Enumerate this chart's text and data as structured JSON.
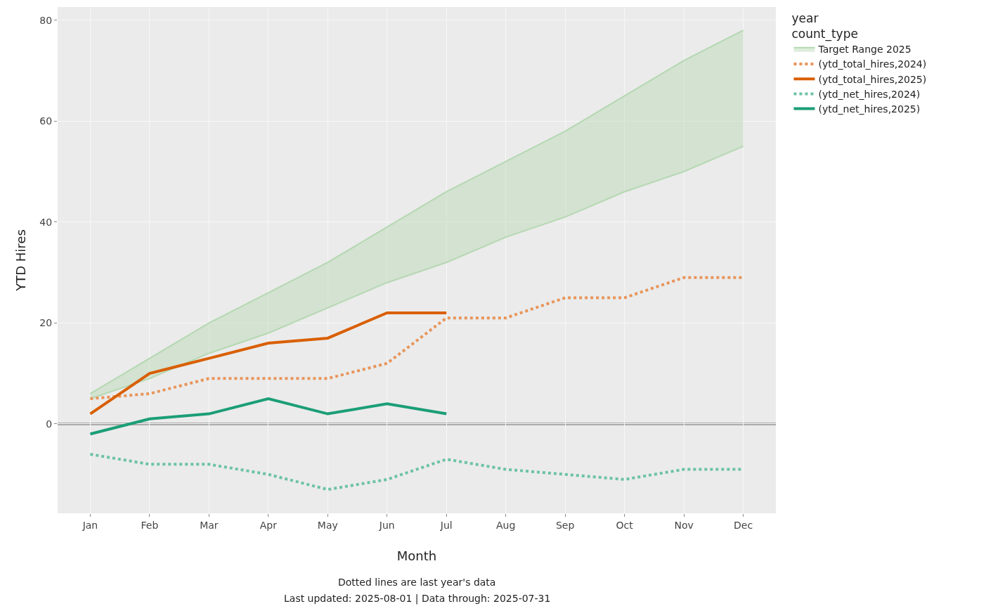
{
  "chart_data": {
    "type": "line",
    "xlabel": "Month",
    "ylabel": "YTD Hires",
    "legend_title": "year\ncount_type",
    "categories": [
      "Jan",
      "Feb",
      "Mar",
      "Apr",
      "May",
      "Jun",
      "Jul",
      "Aug",
      "Sep",
      "Oct",
      "Nov",
      "Dec"
    ],
    "series": [
      {
        "type": "line",
        "color": "#b5d8b2",
        "line_style": "solid",
        "values": [
          5,
          9,
          14,
          18,
          23,
          28,
          32,
          37,
          41,
          46,
          50,
          55
        ]
      },
      {
        "name": "Target Range 2025",
        "type": "area",
        "color": "#b5d8b2",
        "values": [
          6,
          13,
          20,
          26,
          32,
          39,
          46,
          52,
          58,
          65,
          72,
          78
        ]
      },
      {
        "name": "(ytd_total_hires,2024)",
        "type": "line",
        "color": "#e8955a",
        "line_style": "dotted",
        "values": [
          5,
          6,
          9,
          9,
          9,
          12,
          21,
          21,
          25,
          25,
          29,
          29
        ]
      },
      {
        "name": "(ytd_total_hires,2025)",
        "type": "line",
        "color": "#d95f02",
        "line_style": "solid",
        "values": [
          2,
          10,
          13,
          16,
          17,
          22,
          22,
          null,
          null,
          null,
          null,
          null
        ]
      },
      {
        "name": "(ytd_net_hires,2024)",
        "type": "line",
        "color": "#6cc2a6",
        "line_style": "dotted",
        "values": [
          -6,
          -8,
          -8,
          -10,
          -13,
          -11,
          -7,
          -9,
          -10,
          -11,
          -9,
          -9
        ]
      },
      {
        "name": "(ytd_net_hires,2025)",
        "type": "line",
        "color": "#1b9e77",
        "line_style": "solid",
        "values": [
          -2,
          1,
          2,
          5,
          2,
          4,
          2,
          null,
          null,
          null,
          null,
          null
        ]
      }
    ],
    "ylim": [
      -17.7,
      82.6
    ],
    "yticks": [
      0,
      20,
      40,
      60,
      80
    ],
    "ref_lines": [
      {
        "axis": "y",
        "value": 0,
        "color": "#a9a9a9"
      }
    ],
    "grid": true,
    "legend": "top right",
    "annotations": [
      "Dotted lines are last year's data",
      "Last updated: 2025-08-01 | Data through: 2025-07-31"
    ]
  }
}
